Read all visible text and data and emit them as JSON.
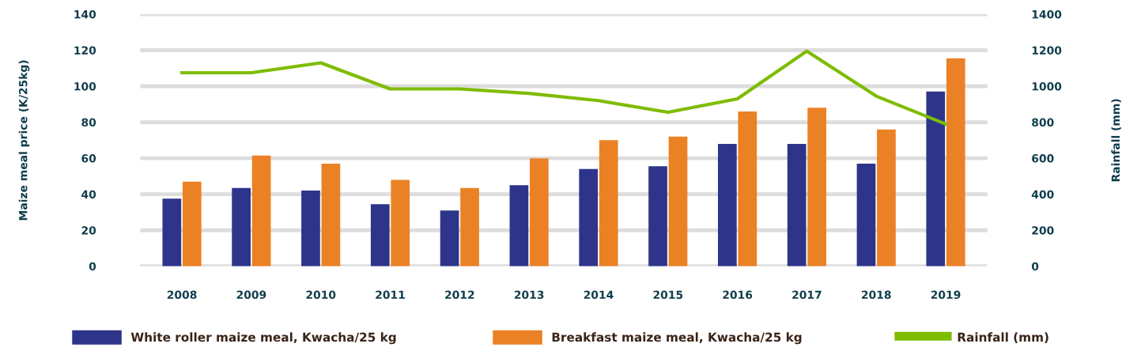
{
  "chart_data": {
    "type": "bar",
    "categories": [
      "2008",
      "2009",
      "2010",
      "2011",
      "2012",
      "2013",
      "2014",
      "2015",
      "2016",
      "2017",
      "2018",
      "2019"
    ],
    "ylabel": "Maize meal price (K/25kg)",
    "y2label": "Rainfall (mm)",
    "ylim": [
      0,
      140
    ],
    "yticks": [
      0,
      20,
      40,
      60,
      80,
      100,
      120,
      140
    ],
    "y2lim": [
      0,
      1400
    ],
    "y2ticks": [
      0,
      200,
      400,
      600,
      800,
      1000,
      1200,
      1400
    ],
    "grid": "y",
    "legend": "bottom",
    "series": [
      {
        "name": "White roller maize meal, Kwacha/25 kg",
        "color": "#2d348a",
        "values": [
          37.5,
          43.5,
          42,
          34.5,
          31,
          45,
          54,
          55.5,
          68,
          68,
          57,
          97
        ]
      },
      {
        "name": "Breakfast maize meal, Kwacha/25 kg",
        "color": "#eb8125",
        "values": [
          47,
          61.5,
          57,
          48,
          43.5,
          60,
          70,
          72,
          86,
          88,
          76,
          115.5
        ]
      },
      {
        "name": "Rainfall (mm)",
        "color": "#7ebc00",
        "type": "line",
        "axis": "y2",
        "values": [
          1075,
          1075,
          1130,
          985,
          985,
          960,
          920,
          855,
          930,
          1195,
          945,
          790
        ]
      }
    ]
  }
}
